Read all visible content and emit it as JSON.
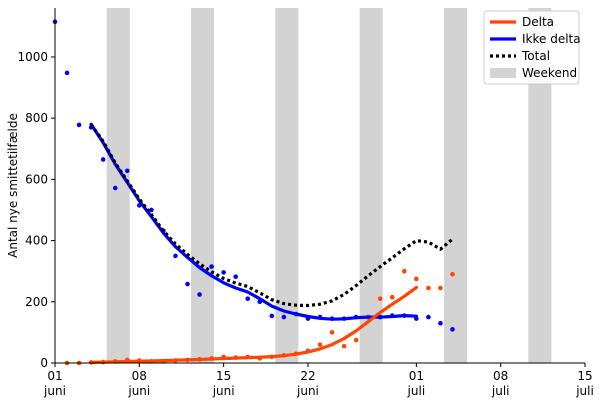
{
  "chart_data": {
    "type": "scatter",
    "ylabel": "Antal nye smittetilfælde",
    "xlabel": "",
    "ylim": [
      0,
      1160
    ],
    "xlim": [
      "2021-06-01",
      "2021-07-15"
    ],
    "x_ticks": [
      {
        "date": "2021-06-01",
        "day": "01",
        "month": "juni"
      },
      {
        "date": "2021-06-08",
        "day": "08",
        "month": "juni"
      },
      {
        "date": "2021-06-15",
        "day": "15",
        "month": "juni"
      },
      {
        "date": "2021-06-22",
        "day": "22",
        "month": "juni"
      },
      {
        "date": "2021-07-01",
        "day": "01",
        "month": "juli"
      },
      {
        "date": "2021-07-08",
        "day": "08",
        "month": "juli"
      },
      {
        "date": "2021-07-15",
        "day": "15",
        "month": "juli"
      }
    ],
    "y_ticks": [
      0,
      200,
      400,
      600,
      800,
      1000
    ],
    "weekends": [
      [
        "2021-06-05",
        "2021-06-07"
      ],
      [
        "2021-06-12",
        "2021-06-14"
      ],
      [
        "2021-06-19",
        "2021-06-21"
      ],
      [
        "2021-06-26",
        "2021-06-28"
      ],
      [
        "2021-07-03",
        "2021-07-05"
      ],
      [
        "2021-07-10",
        "2021-07-12"
      ]
    ],
    "legend": {
      "position": "top-right",
      "entries": [
        {
          "label": "Delta",
          "color": "#ff4500",
          "style": "solid"
        },
        {
          "label": "Ikke delta",
          "color": "#0000ff",
          "style": "solid"
        },
        {
          "label": "Total",
          "color": "#000000",
          "style": "dotted"
        },
        {
          "label": "Weekend",
          "color": "#d3d3d3",
          "style": "patch"
        }
      ]
    },
    "series": [
      {
        "name": "Ikke delta",
        "kind": "points",
        "color": "#0000ff",
        "points": [
          [
            "2021-06-01",
            1115
          ],
          [
            "2021-06-02",
            948
          ],
          [
            "2021-06-03",
            778
          ],
          [
            "2021-06-04",
            770
          ],
          [
            "2021-06-05",
            665
          ],
          [
            "2021-06-06",
            572
          ],
          [
            "2021-06-07",
            628
          ],
          [
            "2021-06-08",
            515
          ],
          [
            "2021-06-09",
            500
          ],
          [
            "2021-06-10",
            432
          ],
          [
            "2021-06-11",
            350
          ],
          [
            "2021-06-12",
            258
          ],
          [
            "2021-06-13",
            224
          ],
          [
            "2021-06-14",
            315
          ],
          [
            "2021-06-15",
            296
          ],
          [
            "2021-06-16",
            282
          ],
          [
            "2021-06-17",
            210
          ],
          [
            "2021-06-18",
            200
          ],
          [
            "2021-06-19",
            154
          ],
          [
            "2021-06-20",
            150
          ],
          [
            "2021-06-21",
            160
          ],
          [
            "2021-06-22",
            145
          ],
          [
            "2021-06-23",
            150
          ],
          [
            "2021-06-24",
            145
          ],
          [
            "2021-06-25",
            145
          ],
          [
            "2021-06-26",
            150
          ],
          [
            "2021-06-27",
            150
          ],
          [
            "2021-06-28",
            150
          ],
          [
            "2021-06-29",
            155
          ],
          [
            "2021-06-30",
            155
          ],
          [
            "2021-07-01",
            145
          ],
          [
            "2021-07-02",
            150
          ],
          [
            "2021-07-03",
            130
          ],
          [
            "2021-07-04",
            110
          ]
        ]
      },
      {
        "name": "Delta",
        "kind": "points",
        "color": "#ff4500",
        "points": [
          [
            "2021-06-02",
            0
          ],
          [
            "2021-06-03",
            0
          ],
          [
            "2021-06-04",
            2
          ],
          [
            "2021-06-05",
            3
          ],
          [
            "2021-06-06",
            5
          ],
          [
            "2021-06-07",
            10
          ],
          [
            "2021-06-08",
            8
          ],
          [
            "2021-06-09",
            5
          ],
          [
            "2021-06-10",
            5
          ],
          [
            "2021-06-11",
            8
          ],
          [
            "2021-06-12",
            10
          ],
          [
            "2021-06-13",
            12
          ],
          [
            "2021-06-14",
            15
          ],
          [
            "2021-06-15",
            20
          ],
          [
            "2021-06-16",
            18
          ],
          [
            "2021-06-17",
            20
          ],
          [
            "2021-06-18",
            15
          ],
          [
            "2021-06-19",
            20
          ],
          [
            "2021-06-20",
            25
          ],
          [
            "2021-06-21",
            30
          ],
          [
            "2021-06-22",
            40
          ],
          [
            "2021-06-23",
            60
          ],
          [
            "2021-06-24",
            100
          ],
          [
            "2021-06-25",
            55
          ],
          [
            "2021-06-26",
            75
          ],
          [
            "2021-06-27",
            150
          ],
          [
            "2021-06-28",
            210
          ],
          [
            "2021-06-29",
            215
          ],
          [
            "2021-06-30",
            300
          ],
          [
            "2021-07-01",
            275
          ],
          [
            "2021-07-02",
            245
          ],
          [
            "2021-07-03",
            245
          ],
          [
            "2021-07-04",
            290
          ]
        ]
      },
      {
        "name": "Ikke delta",
        "kind": "line",
        "color": "#0000ff",
        "points": [
          [
            "2021-06-04",
            780
          ],
          [
            "2021-06-05",
            720
          ],
          [
            "2021-06-06",
            650
          ],
          [
            "2021-06-07",
            590
          ],
          [
            "2021-06-08",
            530
          ],
          [
            "2021-06-09",
            478
          ],
          [
            "2021-06-10",
            425
          ],
          [
            "2021-06-11",
            380
          ],
          [
            "2021-06-12",
            345
          ],
          [
            "2021-06-13",
            312
          ],
          [
            "2021-06-14",
            285
          ],
          [
            "2021-06-15",
            262
          ],
          [
            "2021-06-16",
            245
          ],
          [
            "2021-06-17",
            232
          ],
          [
            "2021-06-18",
            210
          ],
          [
            "2021-06-19",
            186
          ],
          [
            "2021-06-20",
            170
          ],
          [
            "2021-06-21",
            160
          ],
          [
            "2021-06-22",
            152
          ],
          [
            "2021-06-23",
            146
          ],
          [
            "2021-06-24",
            143
          ],
          [
            "2021-06-25",
            144
          ],
          [
            "2021-06-26",
            148
          ],
          [
            "2021-06-27",
            150
          ],
          [
            "2021-06-28",
            150
          ],
          [
            "2021-06-29",
            152
          ],
          [
            "2021-06-30",
            155
          ],
          [
            "2021-07-01",
            153
          ]
        ]
      },
      {
        "name": "Delta",
        "kind": "line",
        "color": "#ff4500",
        "points": [
          [
            "2021-06-04",
            2
          ],
          [
            "2021-06-06",
            4
          ],
          [
            "2021-06-08",
            6
          ],
          [
            "2021-06-10",
            8
          ],
          [
            "2021-06-12",
            10
          ],
          [
            "2021-06-14",
            13
          ],
          [
            "2021-06-16",
            16
          ],
          [
            "2021-06-18",
            19
          ],
          [
            "2021-06-19",
            21
          ],
          [
            "2021-06-20",
            24
          ],
          [
            "2021-06-21",
            29
          ],
          [
            "2021-06-22",
            36
          ],
          [
            "2021-06-23",
            46
          ],
          [
            "2021-06-24",
            60
          ],
          [
            "2021-06-25",
            80
          ],
          [
            "2021-06-26",
            105
          ],
          [
            "2021-06-27",
            135
          ],
          [
            "2021-06-28",
            165
          ],
          [
            "2021-06-29",
            192
          ],
          [
            "2021-06-30",
            218
          ],
          [
            "2021-07-01",
            247
          ]
        ]
      },
      {
        "name": "Total",
        "kind": "line",
        "color": "#000000",
        "dashed": true,
        "points": [
          [
            "2021-06-04",
            780
          ],
          [
            "2021-06-05",
            724
          ],
          [
            "2021-06-06",
            654
          ],
          [
            "2021-06-07",
            595
          ],
          [
            "2021-06-08",
            536
          ],
          [
            "2021-06-09",
            485
          ],
          [
            "2021-06-10",
            432
          ],
          [
            "2021-06-11",
            389
          ],
          [
            "2021-06-12",
            355
          ],
          [
            "2021-06-13",
            324
          ],
          [
            "2021-06-14",
            298
          ],
          [
            "2021-06-15",
            276
          ],
          [
            "2021-06-16",
            261
          ],
          [
            "2021-06-17",
            250
          ],
          [
            "2021-06-18",
            229
          ],
          [
            "2021-06-19",
            207
          ],
          [
            "2021-06-20",
            194
          ],
          [
            "2021-06-21",
            189
          ],
          [
            "2021-06-22",
            188
          ],
          [
            "2021-06-23",
            192
          ],
          [
            "2021-06-24",
            203
          ],
          [
            "2021-06-25",
            224
          ],
          [
            "2021-06-26",
            253
          ],
          [
            "2021-06-27",
            285
          ],
          [
            "2021-06-28",
            315
          ],
          [
            "2021-06-29",
            344
          ],
          [
            "2021-06-30",
            373
          ],
          [
            "2021-07-01",
            400
          ],
          [
            "2021-07-02",
            395
          ],
          [
            "2021-07-03",
            372
          ],
          [
            "2021-07-04",
            405
          ]
        ]
      }
    ]
  }
}
